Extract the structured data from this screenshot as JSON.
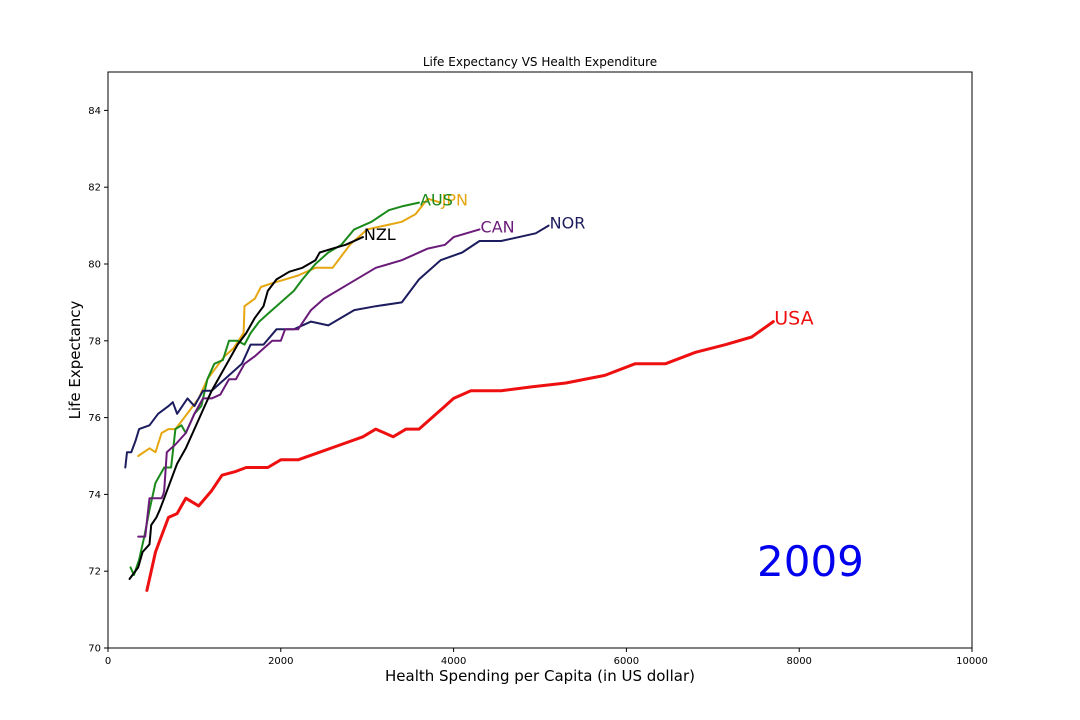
{
  "chart_data": {
    "type": "line",
    "title": "Life Expectancy VS Health Expenditure",
    "xlabel": "Health Spending per Capita (in US dollar)",
    "ylabel": "Life Expectancy",
    "xlim": [
      0,
      10000
    ],
    "ylim": [
      70,
      85
    ],
    "xticks": [
      0,
      2000,
      4000,
      6000,
      8000,
      10000
    ],
    "yticks": [
      70,
      72,
      74,
      76,
      78,
      80,
      82,
      84
    ],
    "grid": false,
    "annotation": "2009",
    "series": [
      {
        "name": "JPN",
        "color": "#e5a610",
        "width": 2,
        "points": [
          [
            350,
            75.0
          ],
          [
            480,
            75.2
          ],
          [
            550,
            75.1
          ],
          [
            620,
            75.6
          ],
          [
            700,
            75.7
          ],
          [
            780,
            75.7
          ],
          [
            850,
            75.9
          ],
          [
            950,
            76.2
          ],
          [
            1050,
            76.5
          ],
          [
            1150,
            77.0
          ],
          [
            1250,
            77.3
          ],
          [
            1350,
            77.6
          ],
          [
            1450,
            77.8
          ],
          [
            1570,
            78.2
          ],
          [
            1580,
            78.9
          ],
          [
            1700,
            79.1
          ],
          [
            1770,
            79.4
          ],
          [
            1900,
            79.5
          ],
          [
            2050,
            79.6
          ],
          [
            2200,
            79.7
          ],
          [
            2400,
            79.9
          ],
          [
            2600,
            79.9
          ],
          [
            2800,
            80.5
          ],
          [
            3000,
            80.9
          ],
          [
            3200,
            81.0
          ],
          [
            3400,
            81.1
          ],
          [
            3560,
            81.3
          ],
          [
            3700,
            81.7
          ],
          [
            3850,
            81.6
          ]
        ]
      },
      {
        "name": "AUS",
        "color": "#1a8a1a",
        "width": 2,
        "points": [
          [
            260,
            72.1
          ],
          [
            300,
            71.9
          ],
          [
            360,
            72.3
          ],
          [
            420,
            72.9
          ],
          [
            480,
            73.6
          ],
          [
            550,
            74.3
          ],
          [
            650,
            74.7
          ],
          [
            730,
            74.7
          ],
          [
            780,
            75.7
          ],
          [
            850,
            75.8
          ],
          [
            900,
            75.6
          ],
          [
            1000,
            76.1
          ],
          [
            1080,
            76.3
          ],
          [
            1150,
            77.0
          ],
          [
            1230,
            77.4
          ],
          [
            1330,
            77.5
          ],
          [
            1400,
            78.0
          ],
          [
            1500,
            78.0
          ],
          [
            1580,
            77.9
          ],
          [
            1650,
            78.2
          ],
          [
            1750,
            78.5
          ],
          [
            1850,
            78.7
          ],
          [
            2000,
            79.0
          ],
          [
            2150,
            79.3
          ],
          [
            2250,
            79.6
          ],
          [
            2400,
            80.0
          ],
          [
            2550,
            80.3
          ],
          [
            2700,
            80.5
          ],
          [
            2850,
            80.9
          ],
          [
            3050,
            81.1
          ],
          [
            3250,
            81.4
          ],
          [
            3400,
            81.5
          ],
          [
            3600,
            81.6
          ]
        ]
      },
      {
        "name": "NOR",
        "color": "#1c1c5e",
        "width": 2,
        "points": [
          [
            200,
            74.7
          ],
          [
            220,
            75.1
          ],
          [
            270,
            75.1
          ],
          [
            320,
            75.4
          ],
          [
            360,
            75.7
          ],
          [
            480,
            75.8
          ],
          [
            580,
            76.1
          ],
          [
            700,
            76.3
          ],
          [
            750,
            76.4
          ],
          [
            800,
            76.1
          ],
          [
            920,
            76.5
          ],
          [
            1000,
            76.3
          ],
          [
            1050,
            76.5
          ],
          [
            1100,
            76.7
          ],
          [
            1200,
            76.7
          ],
          [
            1350,
            77.0
          ],
          [
            1450,
            77.2
          ],
          [
            1550,
            77.4
          ],
          [
            1650,
            77.9
          ],
          [
            1800,
            77.9
          ],
          [
            1950,
            78.3
          ],
          [
            2150,
            78.3
          ],
          [
            2350,
            78.5
          ],
          [
            2550,
            78.4
          ],
          [
            2850,
            78.8
          ],
          [
            3100,
            78.9
          ],
          [
            3400,
            79.0
          ],
          [
            3600,
            79.6
          ],
          [
            3850,
            80.1
          ],
          [
            4100,
            80.3
          ],
          [
            4300,
            80.6
          ],
          [
            4550,
            80.6
          ],
          [
            4950,
            80.8
          ],
          [
            5100,
            81.0
          ]
        ]
      },
      {
        "name": "CAN",
        "color": "#6a1a78",
        "width": 2,
        "points": [
          [
            350,
            72.9
          ],
          [
            430,
            72.9
          ],
          [
            480,
            73.9
          ],
          [
            620,
            73.9
          ],
          [
            640,
            74.0
          ],
          [
            650,
            74.1
          ],
          [
            680,
            75.1
          ],
          [
            780,
            75.3
          ],
          [
            900,
            75.6
          ],
          [
            1000,
            76.1
          ],
          [
            1100,
            76.5
          ],
          [
            1200,
            76.5
          ],
          [
            1300,
            76.6
          ],
          [
            1400,
            77.0
          ],
          [
            1480,
            77.0
          ],
          [
            1580,
            77.4
          ],
          [
            1700,
            77.6
          ],
          [
            1800,
            77.8
          ],
          [
            1900,
            78.0
          ],
          [
            2000,
            78.0
          ],
          [
            2050,
            78.3
          ],
          [
            2200,
            78.3
          ],
          [
            2350,
            78.8
          ],
          [
            2500,
            79.1
          ],
          [
            2800,
            79.5
          ],
          [
            3100,
            79.9
          ],
          [
            3400,
            80.1
          ],
          [
            3700,
            80.4
          ],
          [
            3900,
            80.5
          ],
          [
            4000,
            80.7
          ],
          [
            4300,
            80.9
          ]
        ]
      },
      {
        "name": "NZL",
        "color": "#000000",
        "width": 2,
        "points": [
          [
            250,
            71.8
          ],
          [
            350,
            72.1
          ],
          [
            400,
            72.5
          ],
          [
            480,
            72.7
          ],
          [
            500,
            73.2
          ],
          [
            560,
            73.4
          ],
          [
            600,
            73.6
          ],
          [
            650,
            73.9
          ],
          [
            700,
            74.2
          ],
          [
            750,
            74.5
          ],
          [
            800,
            74.8
          ],
          [
            900,
            75.2
          ],
          [
            1000,
            75.7
          ],
          [
            1100,
            76.2
          ],
          [
            1200,
            76.7
          ],
          [
            1300,
            77.1
          ],
          [
            1400,
            77.5
          ],
          [
            1500,
            77.9
          ],
          [
            1600,
            78.2
          ],
          [
            1700,
            78.6
          ],
          [
            1800,
            78.9
          ],
          [
            1850,
            79.3
          ],
          [
            1950,
            79.6
          ],
          [
            2100,
            79.8
          ],
          [
            2250,
            79.9
          ],
          [
            2400,
            80.1
          ],
          [
            2450,
            80.3
          ],
          [
            2600,
            80.4
          ],
          [
            2750,
            80.5
          ],
          [
            2950,
            80.7
          ]
        ]
      },
      {
        "name": "USA",
        "color": "#ee1010",
        "width": 3,
        "points": [
          [
            450,
            71.5
          ],
          [
            550,
            72.5
          ],
          [
            600,
            72.8
          ],
          [
            700,
            73.4
          ],
          [
            800,
            73.5
          ],
          [
            900,
            73.9
          ],
          [
            1050,
            73.7
          ],
          [
            1200,
            74.1
          ],
          [
            1320,
            74.5
          ],
          [
            1480,
            74.6
          ],
          [
            1600,
            74.7
          ],
          [
            1850,
            74.7
          ],
          [
            2000,
            74.9
          ],
          [
            2200,
            74.9
          ],
          [
            2450,
            75.1
          ],
          [
            2700,
            75.3
          ],
          [
            2950,
            75.5
          ],
          [
            3100,
            75.7
          ],
          [
            3300,
            75.5
          ],
          [
            3450,
            75.7
          ],
          [
            3600,
            75.7
          ],
          [
            3750,
            76.0
          ],
          [
            3900,
            76.3
          ],
          [
            4000,
            76.5
          ],
          [
            4200,
            76.7
          ],
          [
            4550,
            76.7
          ],
          [
            4900,
            76.8
          ],
          [
            5300,
            76.9
          ],
          [
            5750,
            77.1
          ],
          [
            6100,
            77.4
          ],
          [
            6450,
            77.4
          ],
          [
            6800,
            77.7
          ],
          [
            7150,
            77.9
          ],
          [
            7450,
            78.1
          ],
          [
            7700,
            78.5
          ]
        ]
      }
    ]
  }
}
